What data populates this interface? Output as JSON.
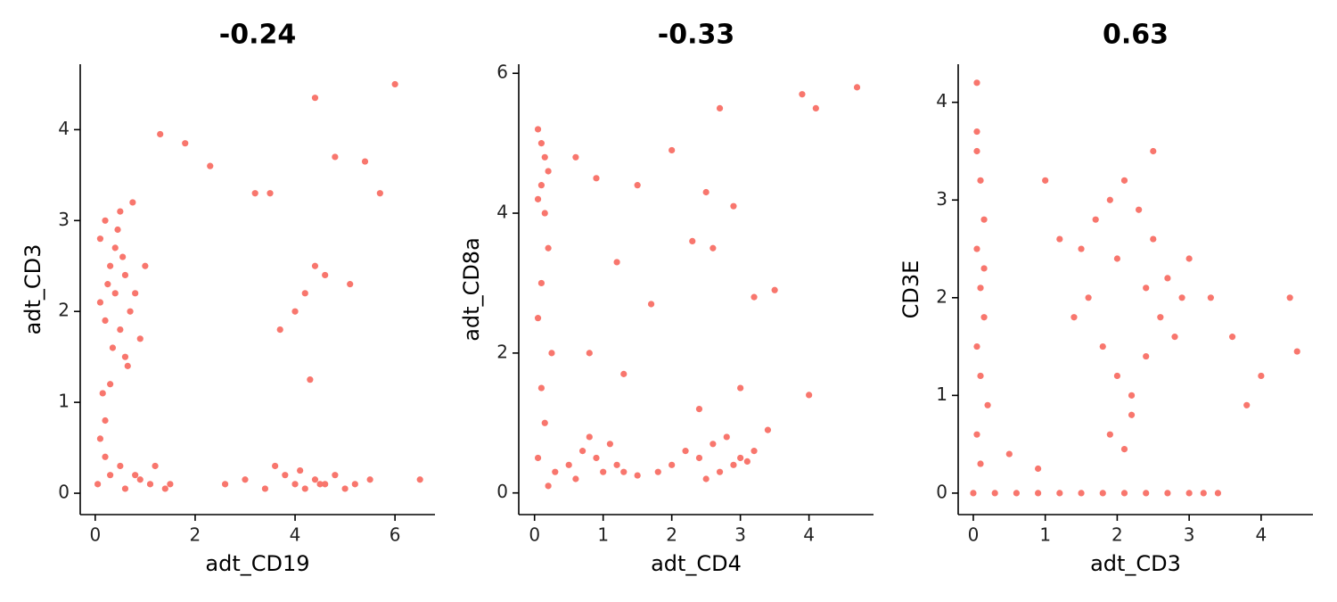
{
  "chart_data": [
    {
      "type": "scatter",
      "title": "-0.24",
      "x_label": "adt_CD19",
      "y_label": "adt_CD3",
      "color": "#F8766D",
      "xlim": [
        -0.3,
        6.8
      ],
      "ylim": [
        -0.235,
        4.72
      ],
      "xticks": [
        0,
        2,
        4,
        6
      ],
      "yticks": [
        0,
        1,
        2,
        3,
        4
      ],
      "x": [
        0.1,
        0.2,
        0.3,
        0.4,
        0.5,
        0.6,
        0.7,
        0.3,
        0.4,
        0.5,
        0.2,
        0.6,
        0.1,
        0.35,
        0.45,
        0.55,
        0.25,
        0.65,
        0.8,
        0.9,
        1.0,
        0.15,
        0.75,
        0.05,
        0.3,
        0.6,
        0.9,
        1.2,
        1.5,
        0.2,
        0.5,
        0.8,
        1.1,
        1.4,
        2.6,
        3.0,
        3.4,
        3.8,
        4.0,
        4.2,
        4.4,
        4.6,
        4.8,
        5.0,
        5.2,
        5.5,
        3.6,
        4.1,
        4.5,
        3.7,
        4.0,
        4.2,
        4.4,
        4.6,
        4.8,
        3.5,
        4.3,
        5.1,
        5.7,
        6.0,
        4.4,
        1.3,
        1.8,
        2.3,
        3.2,
        5.4,
        6.5,
        0.1,
        0.2
      ],
      "y": [
        2.8,
        3.0,
        2.5,
        2.2,
        1.8,
        1.5,
        2.0,
        1.2,
        2.7,
        3.1,
        1.9,
        2.4,
        2.1,
        1.6,
        2.9,
        2.6,
        2.3,
        1.4,
        2.2,
        1.7,
        2.5,
        1.1,
        3.2,
        0.1,
        0.2,
        0.05,
        0.15,
        0.3,
        0.1,
        0.4,
        0.3,
        0.2,
        0.1,
        0.05,
        0.1,
        0.15,
        0.05,
        0.2,
        0.1,
        0.05,
        0.15,
        0.1,
        0.2,
        0.05,
        0.1,
        0.15,
        0.3,
        0.25,
        0.1,
        1.8,
        2.0,
        2.2,
        2.5,
        2.4,
        3.7,
        3.3,
        1.25,
        2.3,
        3.3,
        4.5,
        4.35,
        3.95,
        3.85,
        3.6,
        3.3,
        3.65,
        0.15,
        0.6,
        0.8
      ]
    },
    {
      "type": "scatter",
      "title": "-0.33",
      "x_label": "adt_CD4",
      "y_label": "adt_CD8a",
      "color": "#F8766D",
      "xlim": [
        -0.23,
        4.94
      ],
      "ylim": [
        -0.31,
        6.13
      ],
      "xticks": [
        0,
        1,
        2,
        3,
        4
      ],
      "yticks": [
        0,
        2,
        4,
        6
      ],
      "x": [
        0.05,
        0.1,
        0.15,
        0.2,
        0.1,
        0.05,
        0.15,
        0.2,
        0.1,
        0.05,
        0.25,
        0.1,
        0.15,
        0.05,
        0.2,
        0.3,
        0.5,
        0.7,
        0.9,
        1.1,
        1.3,
        0.6,
        0.8,
        1.0,
        1.2,
        1.5,
        1.8,
        2.0,
        2.2,
        2.4,
        2.6,
        2.8,
        3.0,
        3.2,
        3.4,
        2.5,
        2.7,
        2.9,
        3.1,
        0.6,
        0.9,
        1.2,
        1.5,
        2.0,
        2.3,
        2.5,
        2.7,
        2.9,
        3.2,
        0.8,
        1.7,
        2.6,
        3.9,
        4.1,
        4.7,
        3.0,
        2.4,
        1.3,
        3.5,
        4.0
      ],
      "y": [
        5.2,
        5.0,
        4.8,
        4.6,
        4.4,
        4.2,
        4.0,
        3.5,
        3.0,
        2.5,
        2.0,
        1.5,
        1.0,
        0.5,
        0.1,
        0.3,
        0.4,
        0.6,
        0.5,
        0.7,
        0.3,
        0.2,
        0.8,
        0.3,
        0.4,
        0.25,
        0.3,
        0.4,
        0.6,
        0.5,
        0.7,
        0.8,
        0.5,
        0.6,
        0.9,
        0.2,
        0.3,
        0.4,
        0.45,
        4.8,
        4.5,
        3.3,
        4.4,
        4.9,
        3.6,
        4.3,
        5.5,
        4.1,
        2.8,
        2.0,
        2.7,
        3.5,
        5.7,
        5.5,
        5.8,
        1.5,
        1.2,
        1.7,
        2.9,
        1.4
      ]
    },
    {
      "type": "scatter",
      "title": "0.63",
      "x_label": "adt_CD3",
      "y_label": "CD3E",
      "color": "#F8766D",
      "xlim": [
        -0.21,
        4.72
      ],
      "ylim": [
        -0.22,
        4.39
      ],
      "xticks": [
        0,
        1,
        2,
        3,
        4
      ],
      "yticks": [
        0,
        1,
        2,
        3,
        4
      ],
      "x": [
        0.05,
        0.1,
        0.15,
        0.05,
        0.1,
        0.15,
        0.05,
        0.1,
        0.2,
        0.05,
        0.1,
        0.15,
        0.05,
        0,
        0.3,
        0.6,
        0.9,
        1.2,
        1.5,
        1.8,
        2.1,
        2.4,
        2.7,
        3.0,
        3.2,
        3.4,
        1.5,
        1.7,
        1.9,
        2.1,
        2.3,
        2.5,
        2.7,
        2.9,
        1.8,
        2.0,
        2.2,
        2.4,
        2.6,
        1.6,
        2.0,
        2.4,
        2.8,
        2.2,
        1.9,
        2.5,
        1.4,
        3.0,
        1.0,
        1.2,
        3.3,
        3.6,
        4.0,
        4.4,
        4.5,
        3.8,
        0.5,
        0.9,
        2.1,
        0.05
      ],
      "y": [
        3.5,
        3.2,
        2.8,
        2.5,
        2.1,
        1.8,
        1.5,
        1.2,
        0.9,
        0.6,
        0.3,
        2.3,
        4.2,
        0,
        0,
        0,
        0,
        0,
        0,
        0,
        0,
        0,
        0,
        0,
        0,
        0,
        2.5,
        2.8,
        3.0,
        3.2,
        2.9,
        2.6,
        2.2,
        2.0,
        1.5,
        1.2,
        1.0,
        1.4,
        1.8,
        2.0,
        2.4,
        2.1,
        1.6,
        0.8,
        0.6,
        3.5,
        1.8,
        2.4,
        3.2,
        2.6,
        2.0,
        1.6,
        1.2,
        2.0,
        1.45,
        0.9,
        0.4,
        0.25,
        0.45,
        3.7
      ]
    }
  ]
}
